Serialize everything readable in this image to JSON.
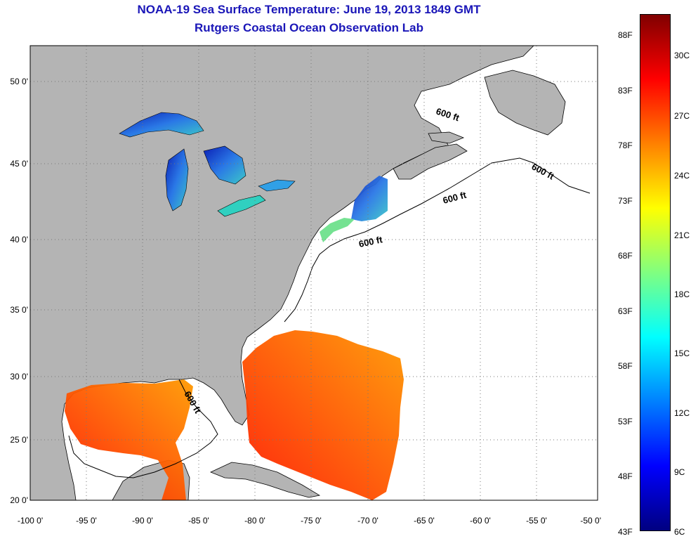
{
  "title": {
    "line1": "NOAA-19 Sea Surface Temperature:  June 19, 2013 1849 GMT",
    "line2": "Rutgers Coastal Ocean Observation Lab"
  },
  "map": {
    "lon_range": [
      -100,
      -50
    ],
    "lat_range": [
      20,
      52.3
    ],
    "lon_ticks": [
      "-100 0'",
      "-95 0'",
      "-90 0'",
      "-85 0'",
      "-80 0'",
      "-75 0'",
      "-70 0'",
      "-65 0'",
      "-60 0'",
      "-55 0'",
      "-50 0'"
    ],
    "lat_ticks": [
      "50 0'",
      "45 0'",
      "40 0'",
      "35 0'",
      "30 0'",
      "25 0'",
      "20 0'"
    ],
    "gridlines": "dotted",
    "land_color": "#b4b4b4",
    "ocean_color": "#ffffff",
    "contour_labels": [
      "600 ft",
      "600 ft",
      "600 ft",
      "600 ft",
      "600 ft"
    ]
  },
  "colorbar": {
    "fahrenheit_labels": [
      "88F",
      "83F",
      "78F",
      "73F",
      "68F",
      "63F",
      "58F",
      "53F",
      "48F",
      "43F"
    ],
    "celsius_labels": [
      "30C",
      "27C",
      "24C",
      "21C",
      "18C",
      "15C",
      "12C",
      "9C",
      "6C"
    ],
    "colors": [
      "#800000",
      "#ff0000",
      "#ff8000",
      "#ffff00",
      "#80ff80",
      "#00ffff",
      "#0080ff",
      "#0000ff",
      "#000080"
    ]
  }
}
